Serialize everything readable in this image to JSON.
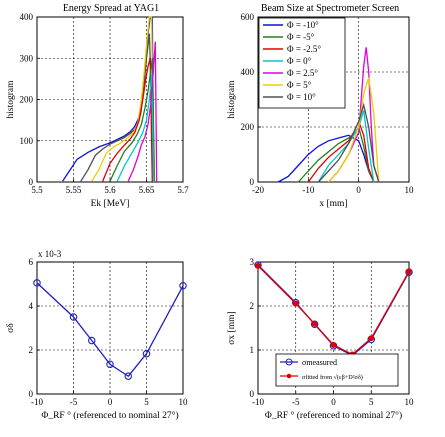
{
  "chart_data": [
    {
      "type": "line",
      "title": "Energy Spread at YAG1",
      "xlabel": "Ek [MeV]",
      "ylabel": "histogram",
      "xlim": [
        5.5,
        5.7
      ],
      "ylim": [
        0,
        400
      ],
      "xticks": [
        "5.5",
        "5.55",
        "5.6",
        "5.65",
        "5.7"
      ],
      "yticks": [
        "0",
        "100",
        "200",
        "300",
        "400"
      ],
      "grid": true,
      "series": [
        {
          "color": "#1010e0",
          "x": [
            5.535,
            5.545,
            5.555,
            5.57,
            5.585,
            5.6,
            5.61,
            5.62,
            5.628,
            5.634,
            5.638,
            5.642,
            5.646,
            5.649,
            5.652,
            5.655,
            5.658,
            5.66
          ],
          "y": [
            2,
            28,
            55,
            72,
            85,
            95,
            103,
            112,
            122,
            135,
            150,
            170,
            220,
            300,
            360,
            400,
            400,
            0
          ]
        },
        {
          "color": "#505050",
          "x": [
            5.56,
            5.57,
            5.58,
            5.59,
            5.6,
            5.61,
            5.62,
            5.628,
            5.634,
            5.638,
            5.642,
            5.646,
            5.65,
            5.654,
            5.657,
            5.66
          ],
          "y": [
            2,
            30,
            65,
            80,
            92,
            100,
            108,
            118,
            128,
            140,
            165,
            220,
            300,
            360,
            190,
            0
          ]
        },
        {
          "color": "#e8d000",
          "x": [
            5.575,
            5.585,
            5.595,
            5.605,
            5.615,
            5.625,
            5.632,
            5.638,
            5.643,
            5.647,
            5.651,
            5.654,
            5.657,
            5.66
          ],
          "y": [
            2,
            30,
            70,
            85,
            95,
            108,
            120,
            140,
            200,
            270,
            350,
            400,
            400,
            0
          ]
        },
        {
          "color": "#e00000",
          "x": [
            5.59,
            5.6,
            5.61,
            5.62,
            5.628,
            5.634,
            5.64,
            5.645,
            5.649,
            5.652,
            5.655,
            5.658
          ],
          "y": [
            2,
            45,
            70,
            90,
            105,
            120,
            150,
            200,
            250,
            280,
            300,
            0
          ]
        },
        {
          "color": "#208020",
          "x": [
            5.6,
            5.61,
            5.62,
            5.63,
            5.637,
            5.643,
            5.648,
            5.652,
            5.655,
            5.658,
            5.661
          ],
          "y": [
            2,
            40,
            75,
            95,
            115,
            140,
            180,
            220,
            260,
            300,
            0
          ]
        },
        {
          "color": "#00c8c8",
          "x": [
            5.61,
            5.62,
            5.63,
            5.638,
            5.645,
            5.65,
            5.654,
            5.657,
            5.66
          ],
          "y": [
            2,
            40,
            70,
            95,
            120,
            150,
            200,
            260,
            0
          ]
        },
        {
          "color": "#e000e0",
          "x": [
            5.625,
            5.632,
            5.638,
            5.643,
            5.648,
            5.652,
            5.656,
            5.659,
            5.662,
            5.664
          ],
          "y": [
            2,
            30,
            60,
            90,
            110,
            140,
            190,
            260,
            340,
            0
          ]
        }
      ]
    },
    {
      "type": "line",
      "title": "Beam Size at Spectrometer Screen",
      "xlabel": "x [mm]",
      "ylabel": "histogram",
      "xlim": [
        -20,
        10
      ],
      "ylim": [
        0,
        600
      ],
      "xticks": [
        "-20",
        "-10",
        "0",
        "10"
      ],
      "yticks": [
        "0",
        "200",
        "400",
        "600"
      ],
      "grid": true,
      "legend": {
        "position": "top-left",
        "entries": [
          "Φ = -10°",
          "Φ = -5°",
          "Φ = -2.5°",
          "Φ = 0°",
          "Φ = 2.5°",
          "Φ = 5°",
          "Φ = 10°"
        ]
      },
      "series": [
        {
          "name": "Φ = -10°",
          "color": "#1010e0",
          "x": [
            -16,
            -14,
            -12,
            -10,
            -8,
            -6,
            -4,
            -2,
            -1,
            0,
            1,
            2,
            3
          ],
          "y": [
            0,
            20,
            60,
            100,
            130,
            150,
            160,
            170,
            160,
            150,
            100,
            40,
            0
          ]
        },
        {
          "name": "Φ = -5°",
          "color": "#208020",
          "x": [
            -12,
            -10,
            -8,
            -6,
            -4,
            -2,
            -1,
            0,
            1,
            2,
            3
          ],
          "y": [
            0,
            40,
            80,
            110,
            140,
            160,
            170,
            200,
            130,
            40,
            0
          ]
        },
        {
          "name": "Φ = -2.5°",
          "color": "#e00000",
          "x": [
            -10,
            -8,
            -6,
            -4,
            -2,
            -1,
            0,
            1,
            2,
            3
          ],
          "y": [
            0,
            50,
            90,
            120,
            150,
            180,
            220,
            170,
            50,
            0
          ]
        },
        {
          "name": "Φ = 0°",
          "color": "#00c8c8",
          "x": [
            -8,
            -6,
            -4,
            -2,
            0,
            1,
            2,
            3
          ],
          "y": [
            0,
            60,
            100,
            140,
            200,
            260,
            120,
            0
          ]
        },
        {
          "name": "Φ = 2.5°",
          "color": "#e000e0",
          "x": [
            -6,
            -4,
            -2,
            0,
            0.5,
            1,
            1.5,
            2,
            2.5,
            3,
            4
          ],
          "y": [
            0,
            40,
            100,
            180,
            300,
            420,
            490,
            400,
            200,
            60,
            0
          ]
        },
        {
          "name": "Φ = 5°",
          "color": "#e8d000",
          "x": [
            -6,
            -4,
            -2,
            0,
            1,
            2,
            3,
            4
          ],
          "y": [
            0,
            40,
            100,
            200,
            320,
            380,
            250,
            0
          ]
        },
        {
          "name": "Φ = 10°",
          "color": "#505050",
          "x": [
            -8,
            -6,
            -4,
            -2,
            0,
            1,
            2,
            3,
            4
          ],
          "y": [
            0,
            40,
            80,
            140,
            220,
            280,
            200,
            60,
            0
          ]
        }
      ]
    },
    {
      "type": "line",
      "title": "",
      "xlabel": "Φ_RF ° (referenced to nominal 27°)",
      "ylabel": "σδ",
      "exponent_label": "x 10-3",
      "xlim": [
        -10,
        10
      ],
      "ylim": [
        0,
        0.006
      ],
      "xticks": [
        "-10",
        "-5",
        "0",
        "5",
        "10"
      ],
      "yticks": [
        "0",
        "2",
        "4",
        "6"
      ],
      "grid": true,
      "series": [
        {
          "color": "#2020c0",
          "marker": "circle",
          "x": [
            -10,
            -5,
            -2.5,
            0,
            2.5,
            5,
            10
          ],
          "y": [
            0.00505,
            0.0035,
            0.00243,
            0.00135,
            0.00081,
            0.00183,
            0.00492
          ]
        }
      ]
    },
    {
      "type": "line",
      "title": "",
      "xlabel": "Φ_RF ° (referenced to nominal 27°)",
      "ylabel": "σx [mm]",
      "xlim": [
        -10,
        10
      ],
      "ylim": [
        0,
        3.5
      ],
      "xticks": [
        "-10",
        "-5",
        "0",
        "5",
        "10"
      ],
      "yticks": [
        "0",
        "1",
        "2",
        "3"
      ],
      "grid": true,
      "legend": {
        "position": "bottom-center",
        "entries": [
          "σmeasured",
          "σfitted from √(εβ+D²σδ)"
        ]
      },
      "series": [
        {
          "name": "σmeasured",
          "color": "#2020c0",
          "marker": "circle",
          "x": [
            -10,
            -5,
            -2.5,
            0,
            2.5,
            5,
            10
          ],
          "y": [
            3.42,
            2.42,
            1.85,
            1.28,
            1.02,
            1.45,
            3.23
          ]
        },
        {
          "name": "σfitted",
          "color": "#e00000",
          "marker": "star",
          "x": [
            -10,
            -5,
            -2.5,
            0,
            2.5,
            5,
            10
          ],
          "y": [
            3.4,
            2.4,
            1.86,
            1.3,
            1.05,
            1.48,
            3.25
          ]
        }
      ]
    }
  ]
}
